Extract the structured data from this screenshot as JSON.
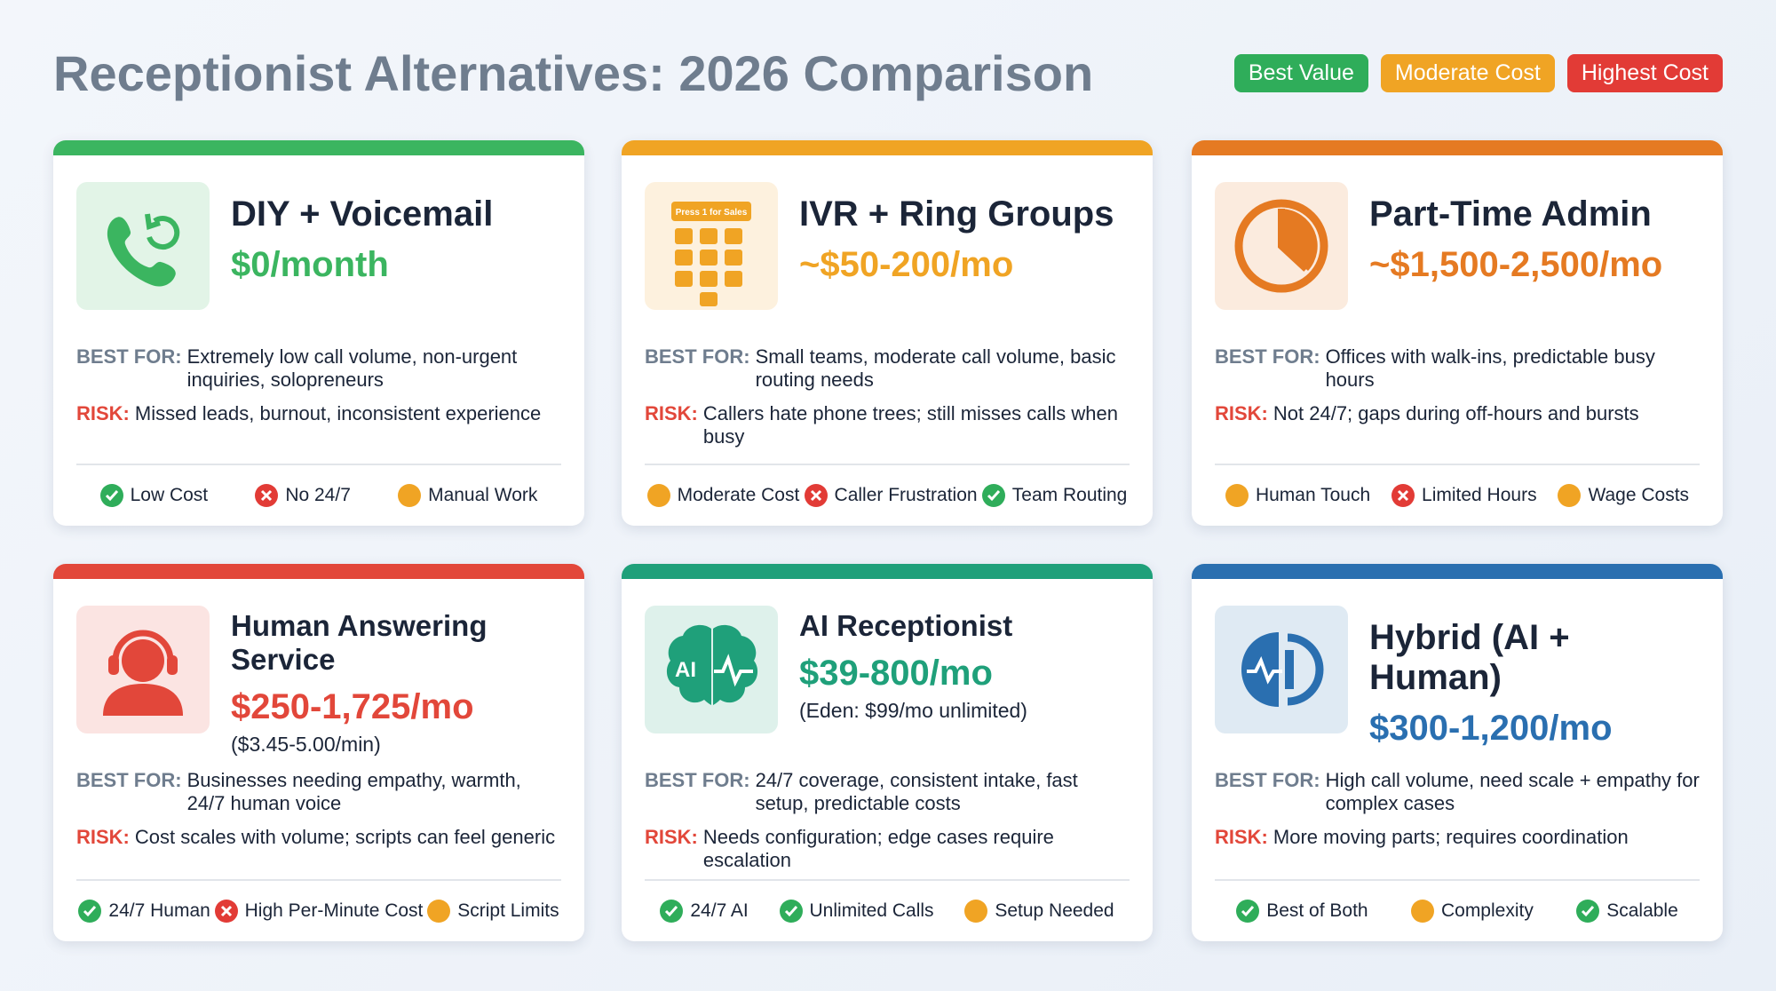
{
  "header": {
    "title": "Receptionist Alternatives: 2026 Comparison",
    "badges": [
      {
        "label": "Best Value",
        "color": "#2fad5a"
      },
      {
        "label": "Moderate Cost",
        "color": "#f0a424"
      },
      {
        "label": "Highest Cost",
        "color": "#e23b36"
      }
    ]
  },
  "cards": [
    {
      "name": "DIY + Voicemail",
      "price": "$0/month",
      "color": "#3bb560",
      "icon": "phone",
      "best_for_label": "BEST FOR:",
      "best_for": "Extremely low call volume, non-urgent inquiries, solopreneurs",
      "risk_label": "RISK:",
      "risk": "Missed leads, burnout, inconsistent experience",
      "tags": [
        {
          "label": "Low Cost",
          "status": "good"
        },
        {
          "label": "No 24/7",
          "status": "bad"
        },
        {
          "label": "Manual Work",
          "status": "warn"
        }
      ]
    },
    {
      "name": "IVR + Ring Groups",
      "price": "~$50-200/mo",
      "color": "#f0a424",
      "icon": "keypad",
      "icon_label": "Press 1 for Sales",
      "best_for_label": "BEST FOR:",
      "best_for": "Small teams, moderate call volume, basic routing needs",
      "risk_label": "RISK:",
      "risk": "Callers hate phone trees; still misses calls when busy",
      "tags": [
        {
          "label": "Moderate Cost",
          "status": "warn"
        },
        {
          "label": "Caller Frustration",
          "status": "bad"
        },
        {
          "label": "Team Routing",
          "status": "good"
        }
      ]
    },
    {
      "name": "Part-Time Admin",
      "price": "~$1,500-2,500/mo",
      "color": "#e57a22",
      "icon": "clock",
      "best_for_label": "BEST FOR:",
      "best_for": "Offices with walk-ins, predictable busy hours",
      "risk_label": "RISK:",
      "risk": "Not 24/7; gaps during off-hours and bursts",
      "tags": [
        {
          "label": "Human Touch",
          "status": "warn"
        },
        {
          "label": "Limited Hours",
          "status": "bad"
        },
        {
          "label": "Wage Costs",
          "status": "warn"
        }
      ]
    },
    {
      "name": "Human Answering Service",
      "price": "$250-1,725/mo",
      "note": "($3.45-5.00/min)",
      "color": "#e2473a",
      "icon": "headset",
      "best_for_label": "BEST FOR:",
      "best_for": "Businesses needing empathy, warmth, 24/7 human voice",
      "risk_label": "RISK:",
      "risk": "Cost scales with volume; scripts can feel generic",
      "tags": [
        {
          "label": "24/7 Human",
          "status": "good"
        },
        {
          "label": "High Per-Minute Cost",
          "status": "bad"
        },
        {
          "label": "Script Limits",
          "status": "warn"
        }
      ]
    },
    {
      "name": "AI Receptionist",
      "price": "$39-800/mo",
      "note": "(Eden: $99/mo unlimited)",
      "color": "#1fa07a",
      "icon": "brain",
      "icon_label": "AI",
      "best_for_label": "BEST FOR:",
      "best_for": "24/7 coverage, consistent intake, fast setup, predictable costs",
      "risk_label": "RISK:",
      "risk": "Needs configuration; edge cases require escalation",
      "tags": [
        {
          "label": "24/7 AI",
          "status": "good"
        },
        {
          "label": "Unlimited Calls",
          "status": "good"
        },
        {
          "label": "Setup Needed",
          "status": "warn"
        }
      ]
    },
    {
      "name": "Hybrid (AI + Human)",
      "price": "$300-1,200/mo",
      "color": "#2a6fb0",
      "icon": "hybrid",
      "best_for_label": "BEST FOR:",
      "best_for": "High call volume, need scale + empathy for complex cases",
      "risk_label": "RISK:",
      "risk": "More moving parts; requires coordination",
      "tags": [
        {
          "label": "Best of Both",
          "status": "good"
        },
        {
          "label": "Complexity",
          "status": "warn"
        },
        {
          "label": "Scalable",
          "status": "good"
        }
      ]
    }
  ]
}
